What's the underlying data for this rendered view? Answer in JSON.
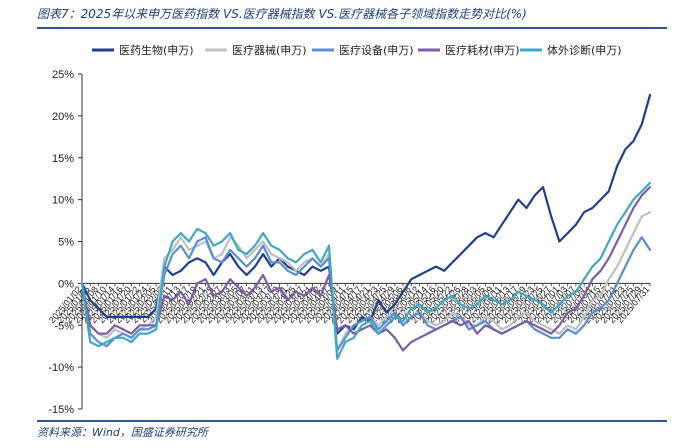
{
  "figure": {
    "title": "图表7：2025年以来申万医药指数 VS.医疗器械指数 VS.医疗器械各子领域指数走势对比(%)",
    "source": "资料来源：Wind，国盛证券研究所"
  },
  "chart_data": {
    "type": "line",
    "title": "",
    "xlabel": "",
    "ylabel": "",
    "ylim": [
      -15,
      25
    ],
    "yticks": [
      -15,
      -10,
      -5,
      0,
      5,
      10,
      15,
      20,
      25
    ],
    "ytick_format": "percent",
    "grid": false,
    "legend_position": "top",
    "x_tick_labels": [
      "2025/01/02",
      "2025/01/06",
      "2025/01/08",
      "2025/01/10",
      "2025/01/14",
      "2025/01/16",
      "2025/01/20",
      "2025/01/22",
      "2025/01/24",
      "2025/02/05",
      "2025/02/07",
      "2025/02/11",
      "2025/02/13",
      "2025/02/17",
      "2025/02/19",
      "2025/02/21",
      "2025/02/25",
      "2025/02/27",
      "2025/03/03",
      "2025/03/05",
      "2025/03/07",
      "2025/03/11",
      "2025/03/13",
      "2025/03/17",
      "2025/03/19",
      "2025/03/21",
      "2025/03/25",
      "2025/03/27",
      "2025/03/31",
      "2025/04/02",
      "2025/04/07",
      "2025/04/09",
      "2025/04/11",
      "2025/04/15",
      "2025/04/17",
      "2025/04/21",
      "2025/04/23",
      "2025/04/25",
      "2025/04/29",
      "2025/05/06",
      "2025/05/08",
      "2025/05/12",
      "2025/05/14",
      "2025/05/16",
      "2025/05/20",
      "2025/05/22",
      "2025/05/26",
      "2025/05/28",
      "2025/06/03",
      "2025/06/05",
      "2025/06/09",
      "2025/06/11",
      "2025/06/13",
      "2025/06/17",
      "2025/06/19",
      "2025/06/23",
      "2025/06/25",
      "2025/06/27",
      "2025/07/01",
      "2025/07/03",
      "2025/07/07",
      "2025/07/09",
      "2025/07/11",
      "2025/07/15",
      "2025/07/17",
      "2025/07/21",
      "2025/07/23",
      "2025/07/25",
      "2025/07/29",
      "2025/07/31"
    ],
    "series": [
      {
        "name": "医药生物(申万)",
        "color": "#1f3f8f",
        "values": [
          0.0,
          -2.0,
          -3.0,
          -4.0,
          -4.0,
          -4.0,
          -4.0,
          -4.0,
          -4.0,
          -3.0,
          2.0,
          1.0,
          1.5,
          2.5,
          3.0,
          2.5,
          1.0,
          2.5,
          3.5,
          2.0,
          1.0,
          2.0,
          3.5,
          2.0,
          3.0,
          2.0,
          1.5,
          1.0,
          2.0,
          1.5,
          2.0,
          -6.0,
          -5.0,
          -5.5,
          -4.0,
          -4.5,
          -2.0,
          -3.5,
          -2.5,
          -1.0,
          0.5,
          1.0,
          1.5,
          2.0,
          1.5,
          2.5,
          3.5,
          4.5,
          5.5,
          6.0,
          5.5,
          7.0,
          8.5,
          10.0,
          9.0,
          10.5,
          11.5,
          8.0,
          5.0,
          6.0,
          7.0,
          8.5,
          9.0,
          10.0,
          11.0,
          14.0,
          16.0,
          17.0,
          19.0,
          22.5
        ]
      },
      {
        "name": "医疗器械(申万)",
        "color": "#c0c0c0",
        "values": [
          0.0,
          -5.0,
          -6.0,
          -6.5,
          -5.5,
          -6.0,
          -6.5,
          -5.5,
          -5.0,
          -4.0,
          3.0,
          4.0,
          5.5,
          4.0,
          4.5,
          5.0,
          3.0,
          3.5,
          5.5,
          4.5,
          3.0,
          4.0,
          5.0,
          3.5,
          3.0,
          2.5,
          1.5,
          2.5,
          3.0,
          2.0,
          3.5,
          -8.0,
          -6.0,
          -5.0,
          -4.5,
          -4.0,
          -5.0,
          -4.0,
          -3.5,
          -5.0,
          -4.0,
          -3.5,
          -4.5,
          -5.0,
          -4.5,
          -3.5,
          -4.0,
          -5.0,
          -5.0,
          -4.0,
          -4.5,
          -5.5,
          -5.0,
          -4.0,
          -3.5,
          -4.5,
          -5.0,
          -5.5,
          -6.0,
          -5.0,
          -5.5,
          -4.0,
          -2.0,
          -1.5,
          0.5,
          2.0,
          4.0,
          6.0,
          8.0,
          8.5
        ]
      },
      {
        "name": "医疗设备(申万)",
        "color": "#5b8ed6",
        "values": [
          0.0,
          -6.0,
          -7.0,
          -7.5,
          -6.5,
          -6.0,
          -6.5,
          -5.5,
          -5.5,
          -5.0,
          1.0,
          3.5,
          4.5,
          3.0,
          5.0,
          5.5,
          3.0,
          2.5,
          4.0,
          3.0,
          2.0,
          3.0,
          4.5,
          2.5,
          2.5,
          1.5,
          1.0,
          2.0,
          3.0,
          2.0,
          3.0,
          -8.0,
          -6.5,
          -5.0,
          -4.5,
          -4.0,
          -5.5,
          -4.5,
          -3.5,
          -5.0,
          -4.0,
          -3.5,
          -5.0,
          -5.5,
          -5.0,
          -4.5,
          -4.0,
          -5.5,
          -5.0,
          -4.5,
          -5.5,
          -6.0,
          -5.5,
          -5.0,
          -4.5,
          -5.5,
          -6.0,
          -6.5,
          -6.5,
          -5.5,
          -6.0,
          -5.0,
          -3.5,
          -3.0,
          -2.0,
          0.0,
          2.0,
          4.0,
          5.5,
          4.0
        ]
      },
      {
        "name": "医疗耗材(申万)",
        "color": "#7b5ea7",
        "values": [
          0.0,
          -5.0,
          -6.0,
          -6.0,
          -5.0,
          -5.5,
          -6.0,
          -5.0,
          -5.0,
          -5.0,
          -1.5,
          -2.0,
          -1.0,
          -2.5,
          0.0,
          0.5,
          -1.5,
          -1.0,
          0.5,
          -0.5,
          -1.5,
          -0.5,
          1.0,
          -1.0,
          -0.5,
          -2.0,
          -1.0,
          -1.5,
          -0.5,
          -1.5,
          1.0,
          -5.5,
          -5.0,
          -6.0,
          -5.5,
          -5.0,
          -6.0,
          -5.5,
          -6.5,
          -8.0,
          -7.0,
          -6.5,
          -6.0,
          -5.5,
          -5.0,
          -4.5,
          -5.0,
          -4.5,
          -6.0,
          -5.0,
          -5.5,
          -6.0,
          -5.5,
          -5.0,
          -4.5,
          -5.0,
          -5.5,
          -6.0,
          -5.0,
          -3.5,
          -3.0,
          -1.5,
          0.5,
          1.5,
          3.0,
          5.0,
          7.0,
          9.0,
          10.5,
          11.5
        ]
      },
      {
        "name": "体外诊断(申万)",
        "color": "#3fa8c7",
        "values": [
          0.0,
          -7.0,
          -7.5,
          -7.0,
          -6.5,
          -6.5,
          -7.0,
          -6.0,
          -6.0,
          -5.5,
          2.0,
          5.0,
          6.0,
          5.0,
          6.5,
          6.0,
          4.5,
          5.0,
          6.0,
          4.0,
          3.5,
          4.5,
          6.0,
          4.5,
          4.0,
          3.0,
          2.5,
          3.5,
          4.0,
          2.5,
          4.5,
          -9.0,
          -7.0,
          -6.5,
          -5.0,
          -4.5,
          -6.0,
          -5.0,
          -4.0,
          -4.5,
          -3.0,
          -2.5,
          -3.5,
          -3.0,
          -2.0,
          -1.5,
          -2.5,
          -3.0,
          -2.5,
          -1.5,
          -2.0,
          -2.5,
          -2.0,
          -1.0,
          -1.5,
          -2.0,
          -2.5,
          -3.5,
          -2.5,
          -1.5,
          -1.0,
          0.5,
          2.0,
          3.0,
          5.0,
          7.0,
          8.5,
          10.0,
          11.0,
          12.0
        ]
      }
    ]
  }
}
